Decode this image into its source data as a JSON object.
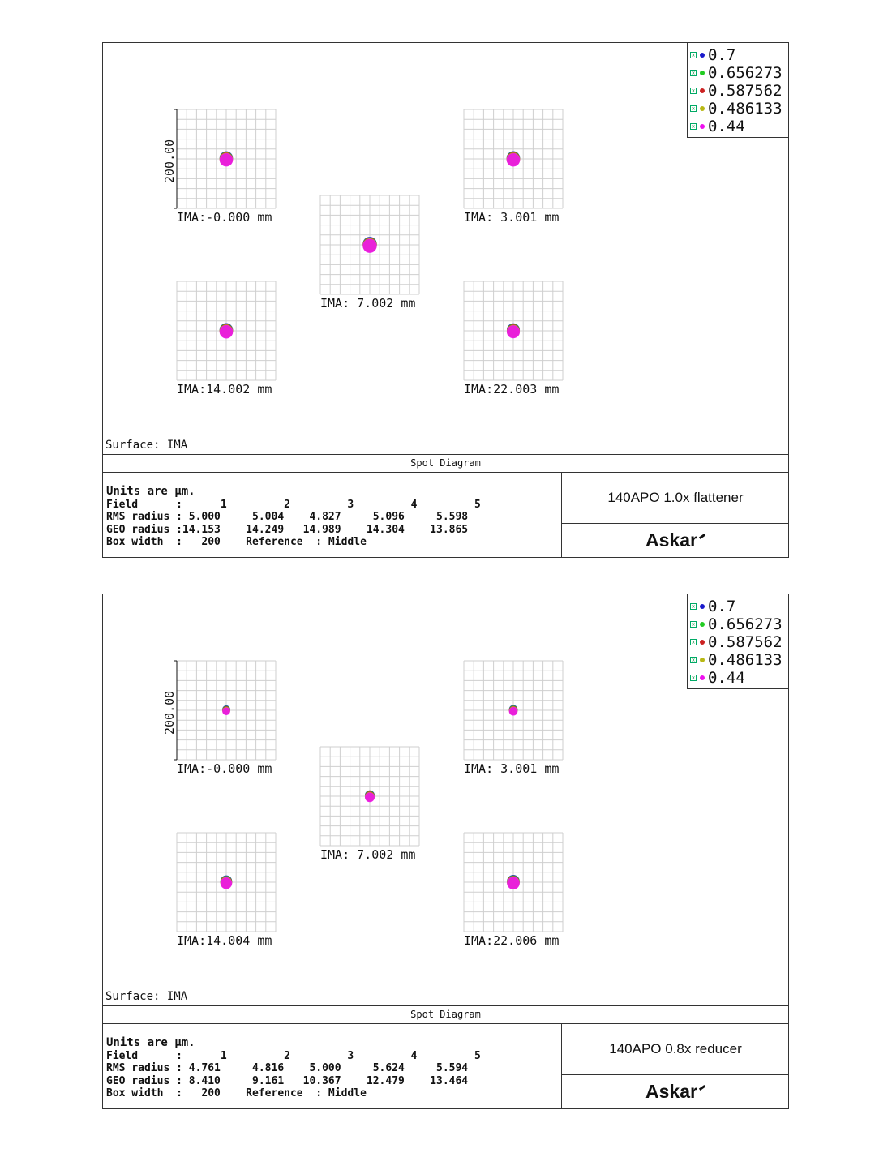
{
  "colors": {
    "wl1": "#1a1acc",
    "wl2": "#22cc22",
    "wl3": "#cc2222",
    "wl4": "#b8b814",
    "wl5": "#ee11ee",
    "grid": "#cfcfcf"
  },
  "panels": [
    {
      "scale_label": "200.00",
      "surface": "Surface: IMA",
      "title": "Spot Diagram",
      "legend": [
        "0.7",
        "0.656273",
        "0.587562",
        "0.486133",
        "0.44"
      ],
      "fields": [
        {
          "label": "IMA:-0.000 mm",
          "spot_radius_um": 14.153
        },
        {
          "label": "IMA: 3.001 mm",
          "spot_radius_um": 14.249
        },
        {
          "label": "IMA: 7.002 mm",
          "spot_radius_um": 14.989
        },
        {
          "label": "IMA:14.002 mm",
          "spot_radius_um": 14.304
        },
        {
          "label": "IMA:22.003 mm",
          "spot_radius_um": 13.865
        }
      ],
      "stats": {
        "units": "Units are µm.",
        "field_row": "Field      :      1         2         3         4         5",
        "rms_row": "RMS radius : 5.000     5.004    4.827     5.096     5.598",
        "geo_row": "GEO radius :14.153    14.249   14.989    14.304    13.865",
        "box_row": "Box width  :   200    Reference  : Middle"
      },
      "lens_name": "140APO 1.0x flattener",
      "logo": "Askar"
    },
    {
      "scale_label": "200.00",
      "surface": "Surface: IMA",
      "title": "Spot Diagram",
      "legend": [
        "0.7",
        "0.656273",
        "0.587562",
        "0.486133",
        "0.44"
      ],
      "fields": [
        {
          "label": "IMA:-0.000 mm",
          "spot_radius_um": 8.41
        },
        {
          "label": "IMA: 3.001 mm",
          "spot_radius_um": 9.161
        },
        {
          "label": "IMA: 7.002 mm",
          "spot_radius_um": 10.367
        },
        {
          "label": "IMA:14.004 mm",
          "spot_radius_um": 12.479
        },
        {
          "label": "IMA:22.006 mm",
          "spot_radius_um": 13.464
        }
      ],
      "stats": {
        "units": "Units are µm.",
        "field_row": "Field      :      1         2         3         4         5",
        "rms_row": "RMS radius : 4.761     4.816    5.000     5.624     5.594",
        "geo_row": "GEO radius : 8.410     9.161   10.367    12.479    13.464",
        "box_row": "Box width  :   200    Reference  : Middle"
      },
      "lens_name": "140APO 0.8x reducer",
      "logo": "Askar"
    }
  ]
}
